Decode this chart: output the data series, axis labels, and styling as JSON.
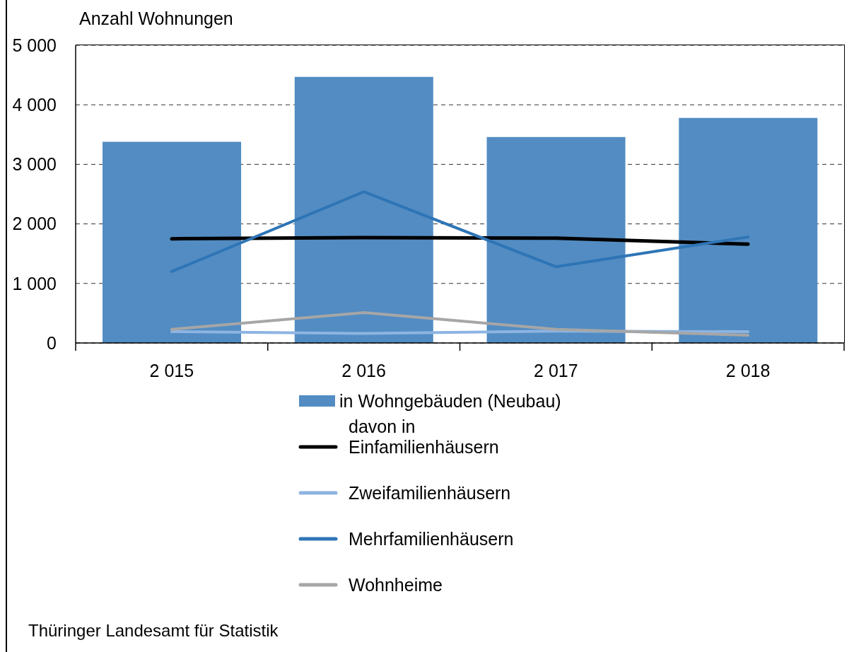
{
  "chart_data": {
    "type": "bar",
    "ylabel": "Anzahl Wohnungen",
    "categories": [
      "2 015",
      "2 016",
      "2 017",
      "2 018"
    ],
    "series": [
      {
        "name": "in Wohngebäuden (Neubau)",
        "color": "#528cc2",
        "values": [
          3380,
          4470,
          3460,
          3780
        ]
      },
      {
        "name": "Einfamilienhäusern",
        "type": "line",
        "color": "#000000",
        "values": [
          1750,
          1770,
          1760,
          1660
        ]
      },
      {
        "name": "Zweifamilienhäusern",
        "type": "line",
        "color": "#8db4e2",
        "values": [
          190,
          160,
          200,
          190
        ]
      },
      {
        "name": "Mehrfamilienhäusern",
        "type": "line",
        "color": "#2e75b6",
        "values": [
          1200,
          2540,
          1280,
          1780
        ]
      },
      {
        "name": "Wohnheime",
        "type": "line",
        "color": "#a6a6a6",
        "values": [
          230,
          510,
          230,
          130
        ]
      }
    ],
    "ylim": [
      0,
      5000
    ],
    "yticks": [
      0,
      {
        "value": 1000,
        "label": "1 000"
      },
      {
        "value": 2000,
        "label": "2 000"
      },
      {
        "value": 3000,
        "label": "3 000"
      },
      {
        "value": 4000,
        "label": "4 000"
      },
      {
        "value": 5000,
        "label": "5 000"
      }
    ],
    "grid": "y",
    "legend": "bottom",
    "annotations": [
      "davon in",
      "Thüringer Landesamt für Statistik"
    ]
  }
}
